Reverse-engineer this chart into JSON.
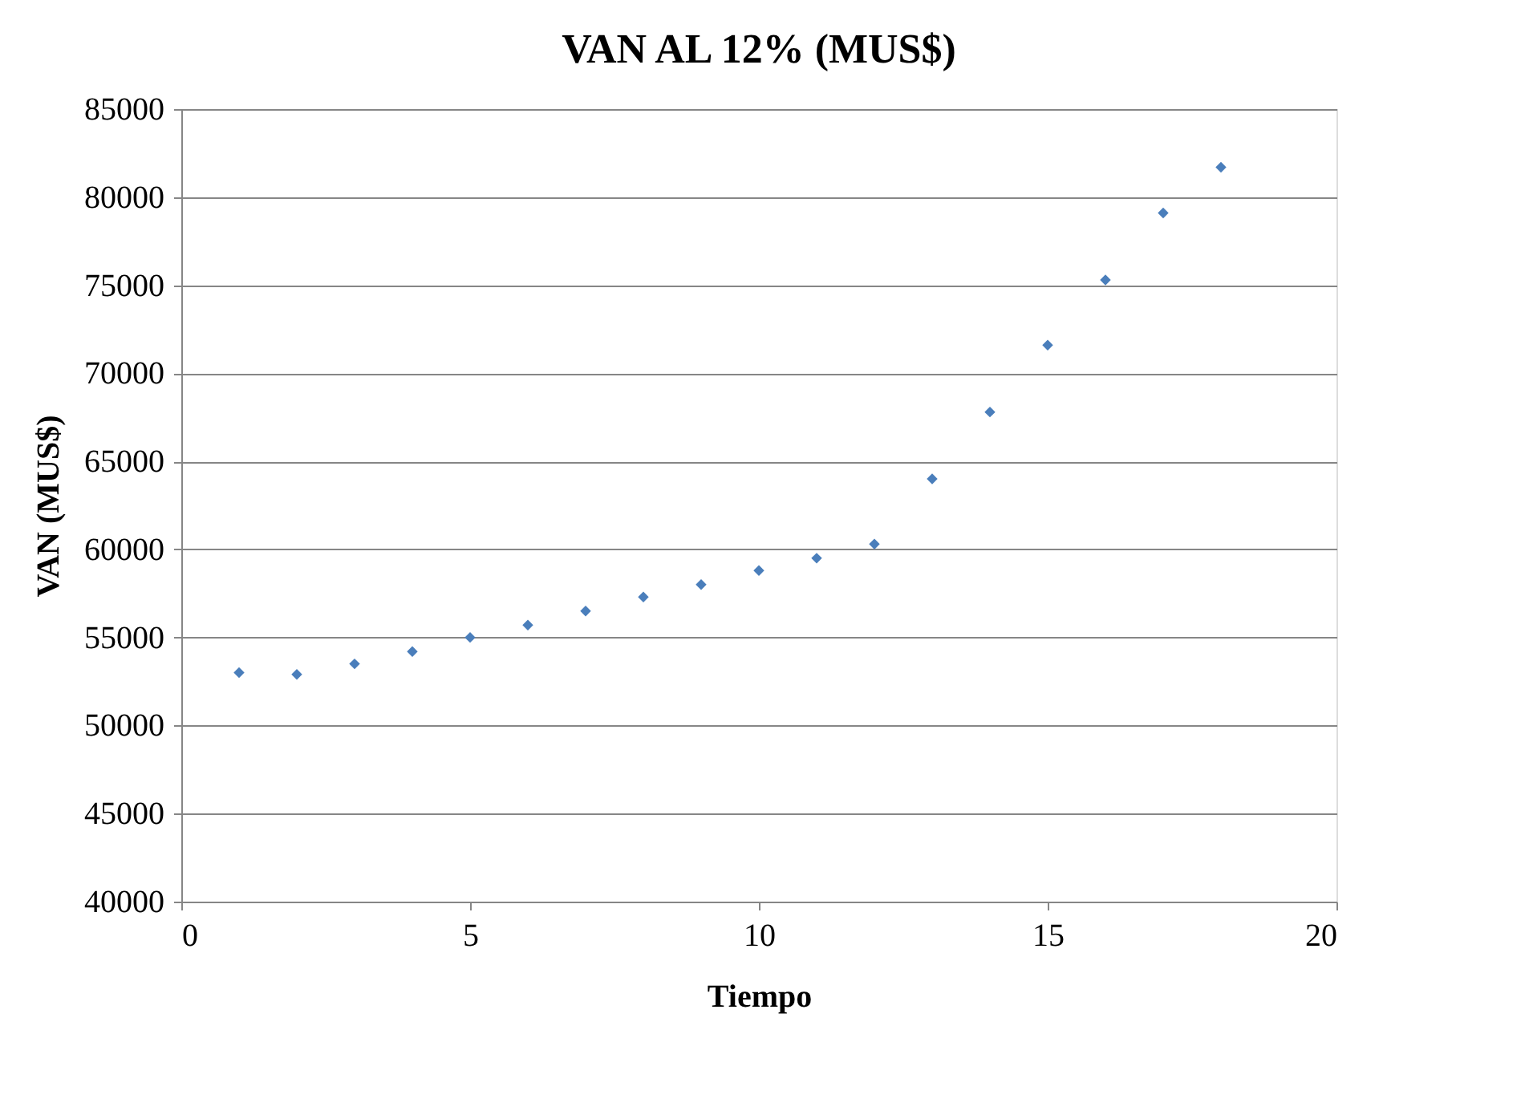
{
  "chart_data": {
    "type": "scatter",
    "title": "VAN AL 12% (MUS$)",
    "xlabel": "Tiempo",
    "ylabel": "VAN (MUS$)",
    "x": [
      1,
      2,
      3,
      4,
      5,
      6,
      7,
      8,
      9,
      10,
      11,
      12,
      13,
      14,
      15,
      16,
      17,
      18
    ],
    "series": [
      {
        "color": "#4a7ebb",
        "values": [
          53000,
          52900,
          53500,
          54200,
          55000,
          55700,
          56500,
          57300,
          58000,
          58800,
          59500,
          60300,
          64000,
          67800,
          71600,
          75300,
          79100,
          81700
        ]
      }
    ],
    "xlim": [
      0,
      20
    ],
    "xticks": [
      0,
      5,
      10,
      15,
      20
    ],
    "ylim": [
      40000,
      85000
    ],
    "yticks": [
      40000,
      45000,
      50000,
      55000,
      60000,
      65000,
      70000,
      75000,
      80000,
      85000
    ],
    "grid": "y",
    "marker": "diamond"
  }
}
